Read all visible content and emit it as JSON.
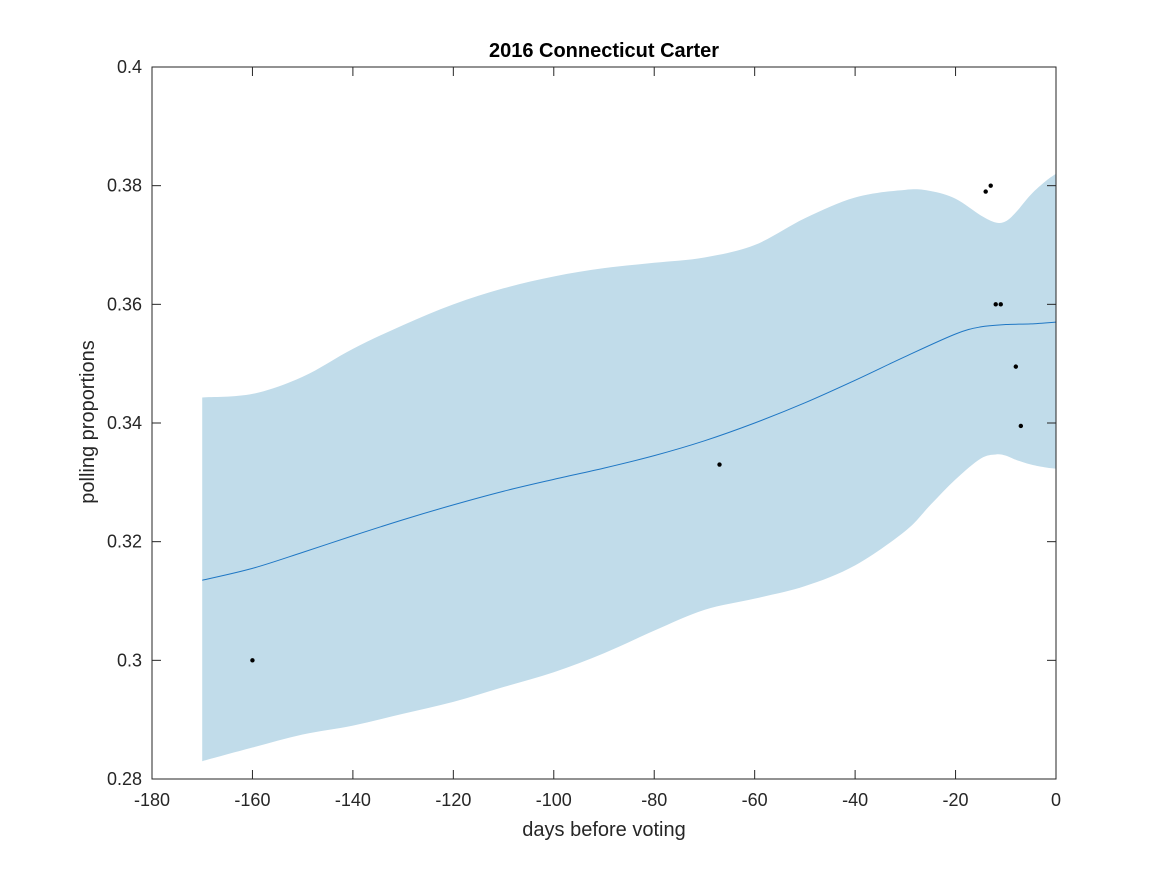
{
  "chart_data": {
    "type": "line",
    "title": "2016 Connecticut Carter",
    "xlabel": "days before voting",
    "ylabel": "polling proportions",
    "xlim": [
      -180,
      0
    ],
    "ylim": [
      0.28,
      0.4
    ],
    "xticks": [
      -180,
      -160,
      -140,
      -120,
      -100,
      -80,
      -60,
      -40,
      -20,
      0
    ],
    "xtick_labels": [
      "-180",
      "-160",
      "-140",
      "-120",
      "-100",
      "-80",
      "-60",
      "-40",
      "-20",
      "0"
    ],
    "yticks": [
      0.28,
      0.3,
      0.32,
      0.34,
      0.36,
      0.38,
      0.4
    ],
    "ytick_labels": [
      "0.28",
      "0.3",
      "0.32",
      "0.34",
      "0.36",
      "0.38",
      "0.4"
    ],
    "grid": false,
    "colors": {
      "band": "#c1dcea",
      "line": "#1f77c4",
      "points": "#000000",
      "axes": "#262626"
    },
    "series": [
      {
        "kind": "band",
        "x": [
          -170,
          -160,
          -150,
          -140,
          -130,
          -120,
          -110,
          -100,
          -90,
          -80,
          -70,
          -60,
          -50,
          -40,
          -30,
          -25,
          -20,
          -15,
          -12,
          -10,
          -8,
          -5,
          -2,
          0
        ],
        "upper": [
          0.3443,
          0.3449,
          0.3478,
          0.3525,
          0.3565,
          0.36,
          0.3627,
          0.3647,
          0.3661,
          0.367,
          0.3679,
          0.37,
          0.3745,
          0.378,
          0.3793,
          0.3791,
          0.3778,
          0.375,
          0.3738,
          0.374,
          0.3755,
          0.3785,
          0.3808,
          0.382
        ],
        "lower": [
          0.283,
          0.2853,
          0.2875,
          0.289,
          0.291,
          0.293,
          0.2955,
          0.298,
          0.3012,
          0.305,
          0.3085,
          0.3104,
          0.3125,
          0.316,
          0.3218,
          0.3262,
          0.3305,
          0.334,
          0.3347,
          0.3345,
          0.3338,
          0.333,
          0.3325,
          0.3323
        ]
      },
      {
        "kind": "line",
        "x": [
          -170,
          -160,
          -150,
          -140,
          -130,
          -120,
          -110,
          -100,
          -90,
          -80,
          -70,
          -60,
          -50,
          -40,
          -30,
          -20,
          -15,
          -10,
          -5,
          0
        ],
        "y": [
          0.3135,
          0.3155,
          0.3182,
          0.321,
          0.3237,
          0.3262,
          0.3285,
          0.3305,
          0.3324,
          0.3345,
          0.337,
          0.34,
          0.3434,
          0.3472,
          0.3512,
          0.355,
          0.3562,
          0.3566,
          0.3567,
          0.357
        ]
      },
      {
        "kind": "scatter",
        "x": [
          -160,
          -67,
          -14,
          -13,
          -12,
          -11,
          -8,
          -7
        ],
        "y": [
          0.3,
          0.333,
          0.379,
          0.38,
          0.36,
          0.36,
          0.3495,
          0.3395
        ]
      }
    ]
  }
}
